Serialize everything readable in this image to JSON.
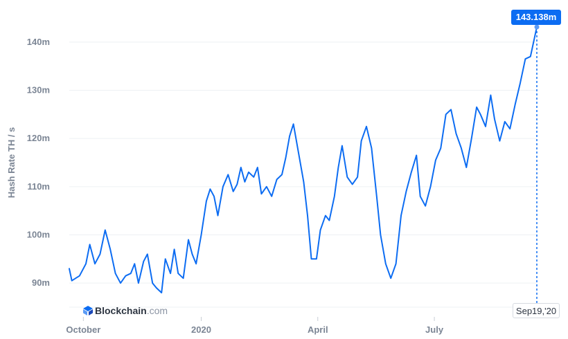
{
  "chart_data": {
    "type": "line",
    "title": "",
    "xlabel": "",
    "ylabel": "Hash Rate TH / s",
    "ylim": [
      85000000,
      145000000
    ],
    "x_tick_labels": [
      "October",
      "2020",
      "April",
      "July"
    ],
    "x_tick_dates": [
      "2019-10-01",
      "2020-01-01",
      "2020-04-01",
      "2020-07-01"
    ],
    "x_range": [
      "2019-09-20",
      "2020-09-19"
    ],
    "y_ticks": [
      90000000,
      100000000,
      110000000,
      120000000,
      130000000,
      140000000
    ],
    "y_tick_labels": [
      "90m",
      "100m",
      "110m",
      "120m",
      "130m",
      "140m"
    ],
    "grid": true,
    "series": [
      {
        "color": "#0c6cf2",
        "points": [
          [
            "2019-09-20",
            93000000
          ],
          [
            "2019-09-22",
            90500000
          ],
          [
            "2019-09-25",
            91000000
          ],
          [
            "2019-09-28",
            91500000
          ],
          [
            "2019-10-03",
            94000000
          ],
          [
            "2019-10-06",
            98000000
          ],
          [
            "2019-10-10",
            94000000
          ],
          [
            "2019-10-14",
            96000000
          ],
          [
            "2019-10-18",
            101000000
          ],
          [
            "2019-10-22",
            97000000
          ],
          [
            "2019-10-26",
            92000000
          ],
          [
            "2019-10-30",
            90000000
          ],
          [
            "2019-11-03",
            91500000
          ],
          [
            "2019-11-07",
            92000000
          ],
          [
            "2019-11-10",
            94000000
          ],
          [
            "2019-11-13",
            90000000
          ],
          [
            "2019-11-17",
            94500000
          ],
          [
            "2019-11-20",
            96000000
          ],
          [
            "2019-11-24",
            90000000
          ],
          [
            "2019-11-27",
            89000000
          ],
          [
            "2019-12-01",
            88000000
          ],
          [
            "2019-12-04",
            95000000
          ],
          [
            "2019-12-08",
            92000000
          ],
          [
            "2019-12-11",
            97000000
          ],
          [
            "2019-12-14",
            92000000
          ],
          [
            "2019-12-18",
            91000000
          ],
          [
            "2019-12-22",
            99000000
          ],
          [
            "2019-12-25",
            96000000
          ],
          [
            "2019-12-28",
            94000000
          ],
          [
            "2020-01-01",
            100000000
          ],
          [
            "2020-01-05",
            107000000
          ],
          [
            "2020-01-08",
            109500000
          ],
          [
            "2020-01-11",
            108000000
          ],
          [
            "2020-01-14",
            104000000
          ],
          [
            "2020-01-18",
            110000000
          ],
          [
            "2020-01-22",
            112500000
          ],
          [
            "2020-01-26",
            109000000
          ],
          [
            "2020-01-29",
            110500000
          ],
          [
            "2020-02-01",
            114000000
          ],
          [
            "2020-02-04",
            111000000
          ],
          [
            "2020-02-07",
            113000000
          ],
          [
            "2020-02-11",
            112000000
          ],
          [
            "2020-02-14",
            114000000
          ],
          [
            "2020-02-17",
            108500000
          ],
          [
            "2020-02-21",
            110000000
          ],
          [
            "2020-02-25",
            108000000
          ],
          [
            "2020-02-29",
            111500000
          ],
          [
            "2020-03-04",
            112500000
          ],
          [
            "2020-03-07",
            116000000
          ],
          [
            "2020-03-10",
            120500000
          ],
          [
            "2020-03-13",
            123000000
          ],
          [
            "2020-03-17",
            117000000
          ],
          [
            "2020-03-21",
            111000000
          ],
          [
            "2020-03-24",
            104000000
          ],
          [
            "2020-03-27",
            95000000
          ],
          [
            "2020-03-31",
            95000000
          ],
          [
            "2020-04-03",
            101000000
          ],
          [
            "2020-04-07",
            104000000
          ],
          [
            "2020-04-10",
            103000000
          ],
          [
            "2020-04-14",
            108000000
          ],
          [
            "2020-04-17",
            114000000
          ],
          [
            "2020-04-20",
            118500000
          ],
          [
            "2020-04-24",
            112000000
          ],
          [
            "2020-04-28",
            110500000
          ],
          [
            "2020-05-02",
            112000000
          ],
          [
            "2020-05-05",
            119500000
          ],
          [
            "2020-05-09",
            122500000
          ],
          [
            "2020-05-13",
            118000000
          ],
          [
            "2020-05-17",
            108000000
          ],
          [
            "2020-05-20",
            100000000
          ],
          [
            "2020-05-24",
            94000000
          ],
          [
            "2020-05-28",
            91000000
          ],
          [
            "2020-06-01",
            94000000
          ],
          [
            "2020-06-05",
            104000000
          ],
          [
            "2020-06-09",
            109000000
          ],
          [
            "2020-06-13",
            113000000
          ],
          [
            "2020-06-17",
            116500000
          ],
          [
            "2020-06-20",
            108000000
          ],
          [
            "2020-06-24",
            106000000
          ],
          [
            "2020-06-28",
            110000000
          ],
          [
            "2020-07-02",
            115500000
          ],
          [
            "2020-07-06",
            118000000
          ],
          [
            "2020-07-10",
            125000000
          ],
          [
            "2020-07-14",
            126000000
          ],
          [
            "2020-07-18",
            121000000
          ],
          [
            "2020-07-22",
            118000000
          ],
          [
            "2020-07-26",
            114000000
          ],
          [
            "2020-07-30",
            120000000
          ],
          [
            "2020-08-03",
            126500000
          ],
          [
            "2020-08-06",
            125000000
          ],
          [
            "2020-08-10",
            122500000
          ],
          [
            "2020-08-14",
            129000000
          ],
          [
            "2020-08-17",
            124000000
          ],
          [
            "2020-08-21",
            119500000
          ],
          [
            "2020-08-25",
            123500000
          ],
          [
            "2020-08-29",
            122000000
          ],
          [
            "2020-09-02",
            127000000
          ],
          [
            "2020-09-06",
            131500000
          ],
          [
            "2020-09-10",
            136500000
          ],
          [
            "2020-09-14",
            137000000
          ],
          [
            "2020-09-19",
            143138000
          ]
        ]
      }
    ],
    "annotations": {
      "last_value_label": "143.138m",
      "last_date_label": "Sep19,'20"
    }
  },
  "watermark": {
    "brand": "Blockchain",
    "suffix": ".com",
    "icon": "blockchain-logo-icon"
  }
}
